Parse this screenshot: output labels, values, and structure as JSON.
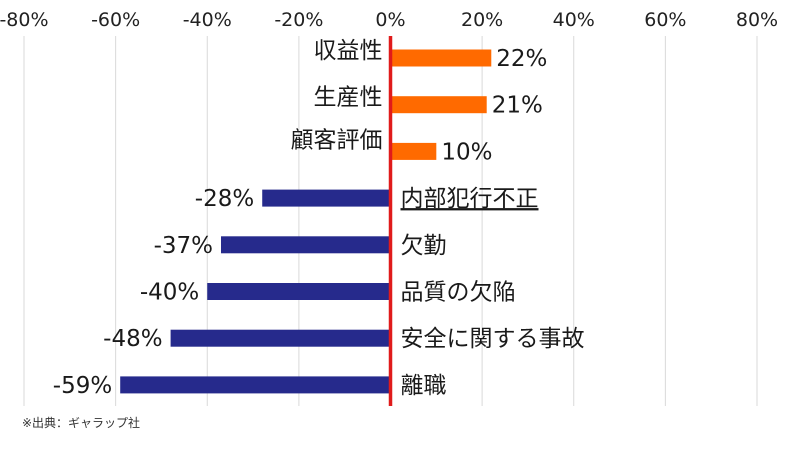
{
  "source_note": "※出典：ギャラップ社",
  "colors": {
    "positive": "#ff6a00",
    "negative": "#262a8c",
    "zero_line": "#e01b1b",
    "grid": "#d9d9d9"
  },
  "chart_data": {
    "type": "bar",
    "orientation": "horizontal",
    "categories": [
      "収益性",
      "生産性",
      "顧客評価",
      "内部犯行不正",
      "欠勤",
      "品質の欠陥",
      "安全に関する事故",
      "離職"
    ],
    "values": [
      22,
      21,
      10,
      -28,
      -37,
      -40,
      -48,
      -59
    ],
    "value_labels": [
      "22%",
      "21%",
      "10%",
      "-28%",
      "-37%",
      "-40%",
      "-48%",
      "-59%"
    ],
    "underlined_categories": [
      "内部犯行不正"
    ],
    "xlim": [
      -80,
      80
    ],
    "xticks": [
      -80,
      -60,
      -40,
      -20,
      0,
      20,
      40,
      60,
      80
    ],
    "xtick_labels": [
      "-80%",
      "-60%",
      "-40%",
      "-20%",
      "0%",
      "20%",
      "40%",
      "60%",
      "80%"
    ],
    "axis_position": "top",
    "grid": true,
    "legend": false
  }
}
